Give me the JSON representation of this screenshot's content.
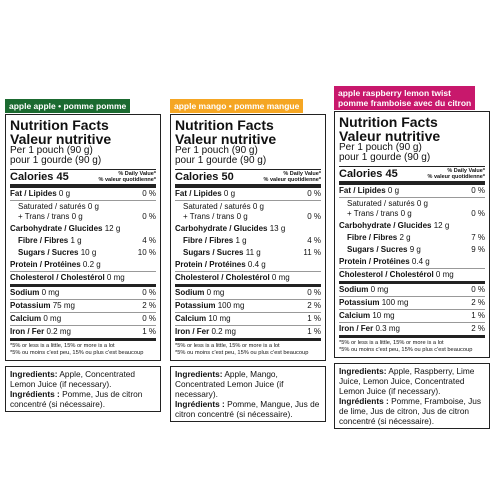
{
  "panels": [
    {
      "header": [
        "apple apple • pomme pomme"
      ],
      "color": "#1b6a30",
      "title_en": "Nutrition Facts",
      "title_fr": "Valeur nutritive",
      "serving_en": "Per 1 pouch (90 g)",
      "serving_fr": "pour 1 gourde (90 g)",
      "calories": "Calories 45",
      "dv_en": "% Daily Value*",
      "dv_fr": "% valeur quotidienne*",
      "rows": [
        {
          "name": "Fat / Lipides",
          "amount": "0 g",
          "dv": "0 %"
        },
        {
          "name": "Saturated / saturés 0 g",
          "amount": "+ Trans / trans 0 g",
          "dv": "0 %"
        },
        {
          "name": "Carbohydrate / Glucides",
          "amount": "12 g"
        },
        {
          "name": "Fibre / Fibres",
          "amount": "1 g",
          "dv": "4 %"
        },
        {
          "name": "Sugars / Sucres",
          "amount": "10 g",
          "dv": "10 %"
        },
        {
          "name": "Protein / Protéines",
          "amount": "0.2 g"
        },
        {
          "name": "Cholesterol / Cholestérol",
          "amount": "0 mg"
        },
        {
          "name": "Sodium",
          "amount": "0 mg",
          "dv": "0 %"
        },
        {
          "name": "Potassium",
          "amount": "75 mg",
          "dv": "2 %"
        },
        {
          "name": "Calcium",
          "amount": "0 mg",
          "dv": "0 %"
        },
        {
          "name": "Iron / Fer",
          "amount": "0.2 mg",
          "dv": "1 %"
        }
      ],
      "footnote_en": "*5% or less is a little, 15% or more is a lot",
      "footnote_fr": "*5% ou moins c'est peu, 15% ou plus c'est beaucoup",
      "ing_en_label": "Ingredients:",
      "ing_en": "Apple, Concentrated Lemon Juice (if necessary).",
      "ing_fr_label": "Ingrédients :",
      "ing_fr": "Pomme, Jus de citron concentré (si nécessaire)."
    },
    {
      "header": [
        "apple mango • pomme mangue"
      ],
      "color": "#f5a623",
      "title_en": "Nutrition Facts",
      "title_fr": "Valeur nutritive",
      "serving_en": "Per 1 pouch (90 g)",
      "serving_fr": "pour 1 gourde (90 g)",
      "calories": "Calories 50",
      "dv_en": "% Daily Value*",
      "dv_fr": "% valeur quotidienne*",
      "rows": [
        {
          "name": "Fat / Lipides",
          "amount": "0 g",
          "dv": "0 %"
        },
        {
          "name": "Saturated / saturés 0 g",
          "amount": "+ Trans / trans 0 g",
          "dv": "0 %"
        },
        {
          "name": "Carbohydrate / Glucides",
          "amount": "13 g"
        },
        {
          "name": "Fibre / Fibres",
          "amount": "1 g",
          "dv": "4 %"
        },
        {
          "name": "Sugars / Sucres",
          "amount": "11 g",
          "dv": "11 %"
        },
        {
          "name": "Protein / Protéines",
          "amount": "0.4 g"
        },
        {
          "name": "Cholesterol / Cholestérol",
          "amount": "0 mg"
        },
        {
          "name": "Sodium",
          "amount": "0 mg",
          "dv": "0 %"
        },
        {
          "name": "Potassium",
          "amount": "100 mg",
          "dv": "2 %"
        },
        {
          "name": "Calcium",
          "amount": "10 mg",
          "dv": "1 %"
        },
        {
          "name": "Iron / Fer",
          "amount": "0.2 mg",
          "dv": "1 %"
        }
      ],
      "footnote_en": "*5% or less is a little, 15% or more is a lot",
      "footnote_fr": "*5% ou moins c'est peu, 15% ou plus c'est beaucoup",
      "ing_en_label": "Ingredients:",
      "ing_en": "Apple, Mango, Concentrated Lemon Juice (if necessary).",
      "ing_fr_label": "Ingrédients :",
      "ing_fr": "Pomme, Mangue, Jus de citron concentré (si nécessaire)."
    },
    {
      "header": [
        "apple raspberry lemon twist",
        "pomme framboise avec du citron"
      ],
      "color": "#c8186c",
      "title_en": "Nutrition Facts",
      "title_fr": "Valeur nutritive",
      "serving_en": "Per 1 pouch (90 g)",
      "serving_fr": "pour 1 gourde (90 g)",
      "calories": "Calories 45",
      "dv_en": "% Daily Value*",
      "dv_fr": "% valeur quotidienne*",
      "rows": [
        {
          "name": "Fat / Lipides",
          "amount": "0 g",
          "dv": "0 %"
        },
        {
          "name": "Saturated / saturés 0 g",
          "amount": "+ Trans / trans 0 g",
          "dv": "0 %"
        },
        {
          "name": "Carbohydrate / Glucides",
          "amount": "12 g"
        },
        {
          "name": "Fibre / Fibres",
          "amount": "2 g",
          "dv": "7 %"
        },
        {
          "name": "Sugars / Sucres",
          "amount": "9 g",
          "dv": "9 %"
        },
        {
          "name": "Protein / Protéines",
          "amount": "0.4 g"
        },
        {
          "name": "Cholesterol / Cholestérol",
          "amount": "0 mg"
        },
        {
          "name": "Sodium",
          "amount": "0 mg",
          "dv": "0 %"
        },
        {
          "name": "Potassium",
          "amount": "100 mg",
          "dv": "2 %"
        },
        {
          "name": "Calcium",
          "amount": "10 mg",
          "dv": "1 %"
        },
        {
          "name": "Iron / Fer",
          "amount": "0.3 mg",
          "dv": "2 %"
        }
      ],
      "footnote_en": "*5% or less is a little, 15% or more is a lot",
      "footnote_fr": "*5% ou moins c'est peu, 15% ou plus c'est beaucoup",
      "ing_en_label": "Ingredients:",
      "ing_en": "Apple, Raspberry, Lime Juice, Lemon Juice, Concentrated Lemon Juice (if necessary).",
      "ing_fr_label": "Ingrédients :",
      "ing_fr": "Pomme, Framboise, Jus de lime, Jus de citron, Jus de citron concentré (si nécessaire)."
    }
  ]
}
